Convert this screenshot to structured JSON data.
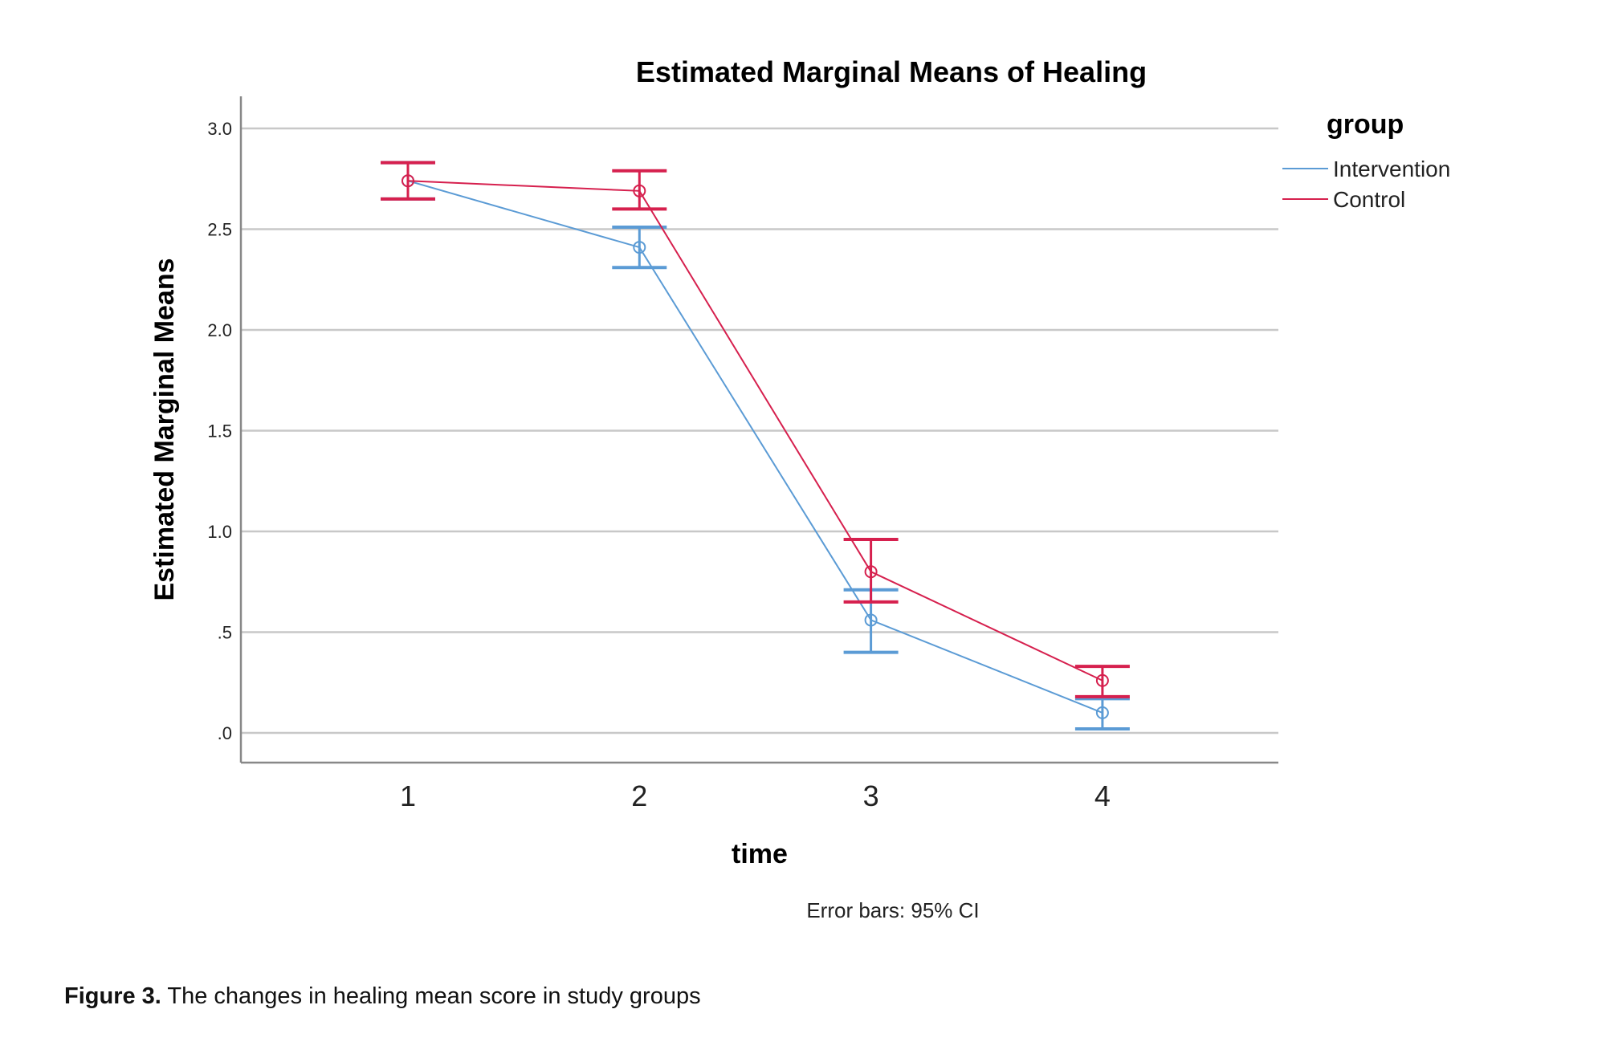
{
  "chart_data": {
    "type": "line",
    "title": "Estimated Marginal Means of Healing",
    "xlabel": "time",
    "ylabel": "Estimated Marginal Means",
    "categories": [
      "1",
      "2",
      "3",
      "4"
    ],
    "ylim": [
      -0.15,
      3.15
    ],
    "yticks": [
      0.0,
      0.5,
      1.0,
      1.5,
      2.0,
      2.5,
      3.0
    ],
    "ytick_labels": [
      ".0",
      ".5",
      "1.0",
      "1.5",
      "2.0",
      "2.5",
      "3.0"
    ],
    "grid": true,
    "legend": {
      "title": "group",
      "position": "top-right"
    },
    "series": [
      {
        "name": "Intervention",
        "color": "#5b9bd5",
        "values": [
          2.74,
          2.41,
          0.56,
          0.1
        ],
        "ci_lower": [
          2.65,
          2.31,
          0.4,
          0.02
        ],
        "ci_upper": [
          2.83,
          2.51,
          0.71,
          0.17
        ]
      },
      {
        "name": "Control",
        "color": "#d6204e",
        "values": [
          2.74,
          2.69,
          0.8,
          0.26
        ],
        "ci_lower": [
          2.65,
          2.6,
          0.65,
          0.18
        ],
        "ci_upper": [
          2.83,
          2.79,
          0.96,
          0.33
        ]
      }
    ],
    "annotation": "Error bars: 95% CI"
  },
  "caption": {
    "label": "Figure 3.",
    "text": " The changes in healing mean score in study groups"
  }
}
